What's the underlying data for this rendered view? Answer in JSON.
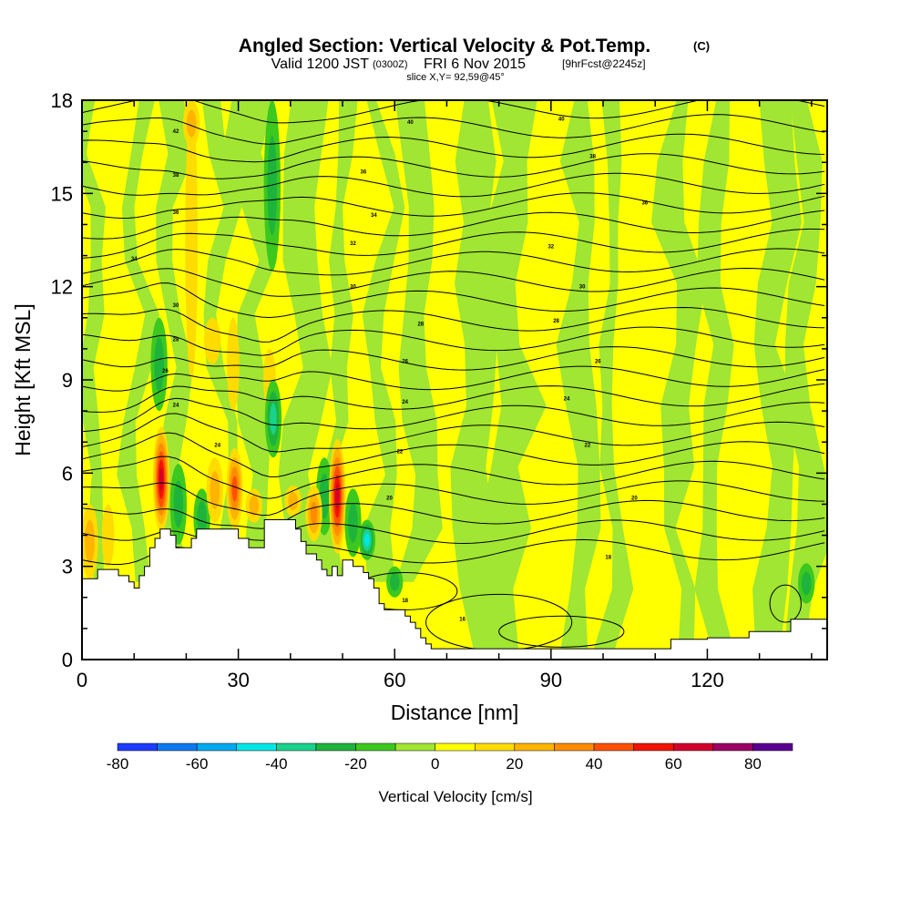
{
  "chart_data": {
    "type": "heatmap",
    "title": {
      "main": "Angled Section: Vertical Velocity & Pot.Temp.",
      "main_suffix": "(C)",
      "valid_a": "Valid 1200 JST",
      "valid_b": "(0300Z)",
      "valid_c": "FRI 6 Nov 2015",
      "fcst": "[9hrFcst@2245z]",
      "slice": "slice X,Y= 92,59@45°"
    },
    "xlabel": "Distance [nm]",
    "ylabel": "Height [Kft MSL]",
    "xlim": [
      0,
      143
    ],
    "ylim": [
      0,
      18
    ],
    "xticks": [
      0,
      30,
      60,
      90,
      120
    ],
    "yticks": [
      0,
      3,
      6,
      9,
      12,
      15,
      18
    ],
    "grid": false,
    "colorbar": {
      "label": "Vertical Velocity [cm/s]",
      "ticks": [
        -80,
        -60,
        -40,
        -20,
        0,
        20,
        40,
        60,
        80
      ],
      "levels": [
        -80,
        -70,
        -60,
        -50,
        -40,
        -30,
        -20,
        -10,
        0,
        10,
        20,
        30,
        40,
        50,
        60,
        70,
        80,
        90
      ],
      "colors": [
        "#1e3cff",
        "#0f78f0",
        "#00aaf0",
        "#00e6e6",
        "#19d28c",
        "#1eb43c",
        "#3cc81e",
        "#a0e632",
        "#ffff00",
        "#ffdc00",
        "#ffb400",
        "#ff8c00",
        "#ff5000",
        "#f01400",
        "#d2002d",
        "#9c0064",
        "#5a0091"
      ]
    },
    "terrain": [
      [
        0,
        2.6
      ],
      [
        3,
        2.6
      ],
      [
        3,
        2.9
      ],
      [
        7,
        2.9
      ],
      [
        7,
        2.7
      ],
      [
        9,
        2.7
      ],
      [
        9,
        2.5
      ],
      [
        10,
        2.5
      ],
      [
        10,
        2.3
      ],
      [
        11,
        2.3
      ],
      [
        11,
        2.7
      ],
      [
        12,
        2.7
      ],
      [
        12,
        3.0
      ],
      [
        13,
        3.0
      ],
      [
        13,
        3.6
      ],
      [
        14,
        3.6
      ],
      [
        14,
        3.9
      ],
      [
        15,
        3.9
      ],
      [
        15,
        4.2
      ],
      [
        17,
        4.2
      ],
      [
        17,
        4.0
      ],
      [
        18,
        4.0
      ],
      [
        18,
        3.6
      ],
      [
        21,
        3.6
      ],
      [
        21,
        3.9
      ],
      [
        22,
        3.9
      ],
      [
        22,
        4.2
      ],
      [
        30,
        4.2
      ],
      [
        30,
        3.9
      ],
      [
        32,
        3.9
      ],
      [
        32,
        3.6
      ],
      [
        35,
        3.6
      ],
      [
        35,
        4.2
      ],
      [
        35,
        4.5
      ],
      [
        41,
        4.5
      ],
      [
        41,
        4.2
      ],
      [
        42,
        4.2
      ],
      [
        42,
        3.8
      ],
      [
        43,
        3.8
      ],
      [
        43,
        3.4
      ],
      [
        45,
        3.4
      ],
      [
        45,
        3.2
      ],
      [
        46,
        3.2
      ],
      [
        46,
        2.9
      ],
      [
        47,
        2.9
      ],
      [
        47,
        2.7
      ],
      [
        48,
        2.7
      ],
      [
        48,
        3.0
      ],
      [
        49,
        3.0
      ],
      [
        49,
        2.7
      ],
      [
        50,
        2.7
      ],
      [
        50,
        3.2
      ],
      [
        52,
        3.2
      ],
      [
        52,
        3.0
      ],
      [
        54,
        3.0
      ],
      [
        54,
        2.8
      ],
      [
        55,
        2.8
      ],
      [
        55,
        2.6
      ],
      [
        56,
        2.6
      ],
      [
        56,
        2.3
      ],
      [
        57,
        2.3
      ],
      [
        57,
        1.8
      ],
      [
        58,
        1.8
      ],
      [
        58,
        1.6
      ],
      [
        62,
        1.6
      ],
      [
        62,
        1.4
      ],
      [
        63,
        1.4
      ],
      [
        63,
        1.2
      ],
      [
        64,
        1.2
      ],
      [
        64,
        1.0
      ],
      [
        65,
        1.0
      ],
      [
        65,
        0.7
      ],
      [
        66,
        0.7
      ],
      [
        66,
        0.5
      ],
      [
        67,
        0.5
      ],
      [
        67,
        0.35
      ],
      [
        113,
        0.35
      ],
      [
        113,
        0.65
      ],
      [
        120,
        0.65
      ],
      [
        120,
        0.7
      ],
      [
        128,
        0.7
      ],
      [
        128,
        0.9
      ],
      [
        136,
        0.9
      ],
      [
        136,
        1.3
      ],
      [
        143,
        1.3
      ]
    ],
    "updrafts": [
      {
        "x": 15.2,
        "y0": 4.1,
        "y1": 7.5,
        "peak": 65
      },
      {
        "x": 49.0,
        "y0": 3.4,
        "y1": 7.1,
        "peak": 65
      },
      {
        "x": 29.3,
        "y0": 4.2,
        "y1": 6.8,
        "peak": 48
      },
      {
        "x": 25.5,
        "y0": 4.4,
        "y1": 6.5,
        "peak": 28
      },
      {
        "x": 33.0,
        "y0": 4.4,
        "y1": 5.5,
        "peak": 25
      },
      {
        "x": 40.5,
        "y0": 4.6,
        "y1": 5.6,
        "peak": 25
      },
      {
        "x": 44.5,
        "y0": 3.8,
        "y1": 5.6,
        "peak": 32
      },
      {
        "x": 1.5,
        "y0": 2.6,
        "y1": 5.0,
        "peak": 22
      },
      {
        "x": 21.0,
        "y0": 16.5,
        "y1": 18.0,
        "peak": 25
      },
      {
        "x": 25.0,
        "y0": 9.5,
        "y1": 11.0,
        "peak": 15
      }
    ],
    "downdrafts": [
      {
        "x": 18.5,
        "y0": 3.7,
        "y1": 6.3,
        "peak": -25
      },
      {
        "x": 36.7,
        "y0": 6.5,
        "y1": 9.0,
        "peak": -38
      },
      {
        "x": 54.7,
        "y0": 3.2,
        "y1": 4.5,
        "peak": -45
      },
      {
        "x": 46.5,
        "y0": 4.0,
        "y1": 6.5,
        "peak": -25
      },
      {
        "x": 52.0,
        "y0": 3.3,
        "y1": 5.5,
        "peak": -25
      },
      {
        "x": 36.5,
        "y0": 12.5,
        "y1": 18.0,
        "peak": -28
      },
      {
        "x": 14.8,
        "y0": 8.0,
        "y1": 11.0,
        "peak": -22
      },
      {
        "x": 23.0,
        "y0": 3.6,
        "y1": 5.5,
        "peak": -20
      },
      {
        "x": 60.0,
        "y0": 2.0,
        "y1": 3.0,
        "peak": -20
      },
      {
        "x": 139.0,
        "y0": 1.8,
        "y1": 3.1,
        "peak": -20
      }
    ],
    "isentrope_labels": [
      {
        "x": 18.0,
        "y": 17.0,
        "text": "42"
      },
      {
        "x": 63.0,
        "y": 17.3,
        "text": "40"
      },
      {
        "x": 92.0,
        "y": 17.4,
        "text": "40"
      },
      {
        "x": 98.0,
        "y": 16.2,
        "text": "38"
      },
      {
        "x": 18.0,
        "y": 15.6,
        "text": "38"
      },
      {
        "x": 54.0,
        "y": 15.7,
        "text": "36"
      },
      {
        "x": 108.0,
        "y": 14.7,
        "text": "36"
      },
      {
        "x": 18.0,
        "y": 14.4,
        "text": "36"
      },
      {
        "x": 56.0,
        "y": 14.3,
        "text": "34"
      },
      {
        "x": 10.0,
        "y": 12.9,
        "text": "34"
      },
      {
        "x": 52.0,
        "y": 13.4,
        "text": "32"
      },
      {
        "x": 90.0,
        "y": 13.3,
        "text": "32"
      },
      {
        "x": 52.0,
        "y": 12.0,
        "text": "30"
      },
      {
        "x": 96.0,
        "y": 12.0,
        "text": "30"
      },
      {
        "x": 18.0,
        "y": 11.4,
        "text": "30"
      },
      {
        "x": 65.0,
        "y": 10.8,
        "text": "28"
      },
      {
        "x": 91.0,
        "y": 10.9,
        "text": "28"
      },
      {
        "x": 18.0,
        "y": 10.3,
        "text": "28"
      },
      {
        "x": 62.0,
        "y": 9.6,
        "text": "26"
      },
      {
        "x": 99.0,
        "y": 9.6,
        "text": "26"
      },
      {
        "x": 16.0,
        "y": 9.3,
        "text": "26"
      },
      {
        "x": 62.0,
        "y": 8.3,
        "text": "24"
      },
      {
        "x": 93.0,
        "y": 8.4,
        "text": "24"
      },
      {
        "x": 18.0,
        "y": 8.2,
        "text": "24"
      },
      {
        "x": 26.0,
        "y": 6.9,
        "text": "24"
      },
      {
        "x": 61.0,
        "y": 6.7,
        "text": "22"
      },
      {
        "x": 97.0,
        "y": 6.9,
        "text": "22"
      },
      {
        "x": 59.0,
        "y": 5.2,
        "text": "20"
      },
      {
        "x": 106.0,
        "y": 5.2,
        "text": "20"
      },
      {
        "x": 101.0,
        "y": 3.3,
        "text": "18"
      },
      {
        "x": 62.0,
        "y": 1.9,
        "text": "18"
      },
      {
        "x": 73.0,
        "y": 1.3,
        "text": "16"
      }
    ]
  }
}
